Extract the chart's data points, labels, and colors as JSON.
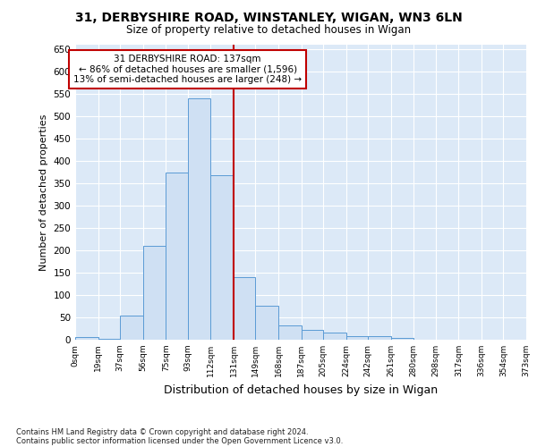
{
  "title_line1": "31, DERBYSHIRE ROAD, WINSTANLEY, WIGAN, WN3 6LN",
  "title_line2": "Size of property relative to detached houses in Wigan",
  "xlabel": "Distribution of detached houses by size in Wigan",
  "ylabel": "Number of detached properties",
  "footer_line1": "Contains HM Land Registry data © Crown copyright and database right 2024.",
  "footer_line2": "Contains public sector information licensed under the Open Government Licence v3.0.",
  "annotation_line1": "31 DERBYSHIRE ROAD: 137sqm",
  "annotation_line2": "← 86% of detached houses are smaller (1,596)",
  "annotation_line3": "13% of semi-detached houses are larger (248) →",
  "bar_edges": [
    0,
    19,
    37,
    56,
    75,
    93,
    112,
    131,
    149,
    168,
    187,
    205,
    224,
    242,
    261,
    280,
    298,
    317,
    336,
    354,
    373
  ],
  "bar_heights": [
    7,
    2,
    55,
    210,
    375,
    540,
    368,
    140,
    77,
    32,
    22,
    17,
    9,
    9,
    4,
    1,
    0,
    0,
    0,
    0
  ],
  "bar_labels": [
    "0sqm",
    "19sqm",
    "37sqm",
    "56sqm",
    "75sqm",
    "93sqm",
    "112sqm",
    "131sqm",
    "149sqm",
    "168sqm",
    "187sqm",
    "205sqm",
    "224sqm",
    "242sqm",
    "261sqm",
    "280sqm",
    "298sqm",
    "317sqm",
    "336sqm",
    "354sqm",
    "373sqm"
  ],
  "bar_color": "#cfe0f3",
  "bar_edge_color": "#5b9bd5",
  "property_line_x": 131,
  "property_line_color": "#c00000",
  "annotation_box_color": "#c00000",
  "background_color": "#dce9f7",
  "grid_color": "#ffffff",
  "fig_background": "#ffffff",
  "ylim": [
    0,
    660
  ],
  "yticks": [
    0,
    50,
    100,
    150,
    200,
    250,
    300,
    350,
    400,
    450,
    500,
    550,
    600,
    650
  ]
}
